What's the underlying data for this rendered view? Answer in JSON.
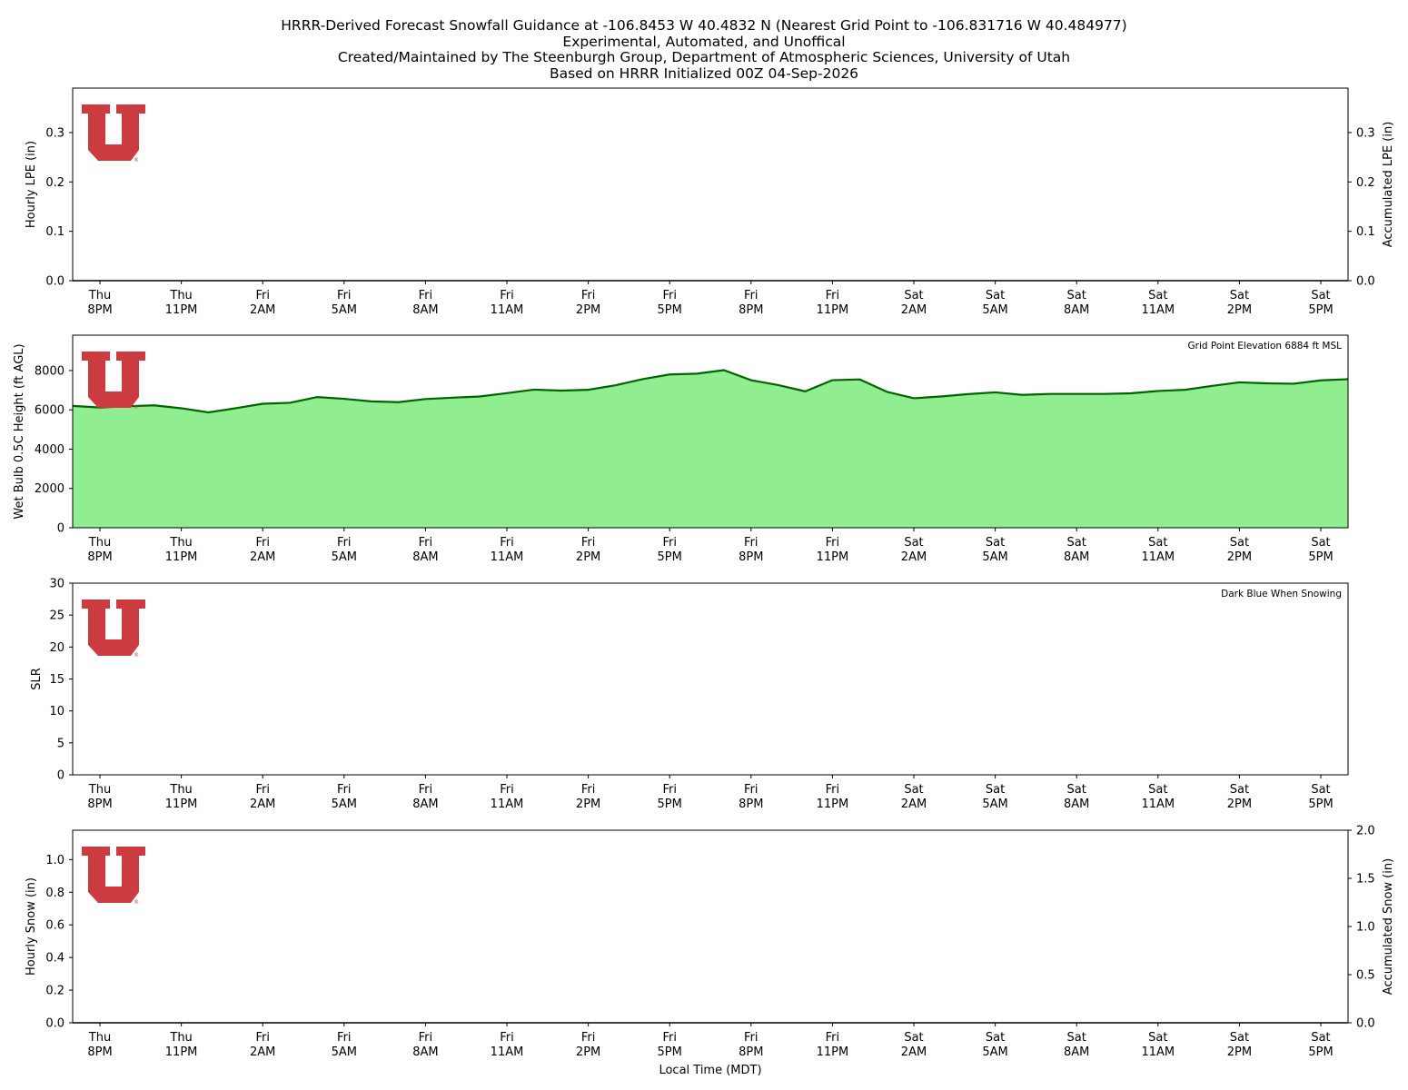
{
  "title_lines": [
    "HRRR-Derived Forecast Snowfall Guidance at -106.8453 W 40.4832 N (Nearest Grid Point to -106.831716 W 40.484977)",
    "Experimental, Automated, and Unoffical",
    "Created/Maintained by The Steenburgh Group, Department of Atmospheric Sciences, University of Utah",
    "Based on HRRR Initialized 00Z 04-Sep-2026"
  ],
  "x_axis_label": "Local Time (MDT)",
  "logo_letter": "U",
  "colors": {
    "logo_red": "#cc3b3f",
    "wetbulb_fill": "#90ee90",
    "wetbulb_line": "#006400",
    "axis": "#000000"
  },
  "chart_data": [
    {
      "id": "lpe",
      "type": "bar",
      "ylabel": "Hourly LPE (in)",
      "ylim": [
        0,
        0.39
      ],
      "yticks": [
        0.0,
        0.1,
        0.2,
        0.3
      ],
      "ylabel_right": "Accumulated LPE (in)",
      "ylim_right": [
        0,
        0.39
      ],
      "yticks_right": [
        0.0,
        0.1,
        0.2,
        0.3
      ],
      "note": "",
      "values": [
        0,
        0,
        0,
        0,
        0,
        0,
        0,
        0,
        0,
        0,
        0,
        0,
        0,
        0,
        0,
        0,
        0,
        0,
        0,
        0,
        0,
        0,
        0,
        0,
        0,
        0,
        0,
        0,
        0,
        0,
        0,
        0,
        0,
        0,
        0,
        0,
        0,
        0,
        0,
        0,
        0,
        0,
        0,
        0,
        0,
        0,
        0,
        0
      ],
      "accumulated": [
        0,
        0,
        0,
        0,
        0,
        0,
        0,
        0,
        0,
        0,
        0,
        0,
        0,
        0,
        0,
        0,
        0,
        0,
        0,
        0,
        0,
        0,
        0,
        0,
        0,
        0,
        0,
        0,
        0,
        0,
        0,
        0,
        0,
        0,
        0,
        0,
        0,
        0,
        0,
        0,
        0,
        0,
        0,
        0,
        0,
        0,
        0,
        0
      ]
    },
    {
      "id": "wetbulb",
      "type": "area",
      "ylabel": "Wet Bulb 0.5C Height (ft AGL)",
      "ylim": [
        0,
        9800
      ],
      "yticks": [
        0,
        2000,
        4000,
        6000,
        8000
      ],
      "note": "Grid Point Elevation 6884 ft MSL",
      "values": [
        6200,
        6120,
        6180,
        6230,
        6080,
        5870,
        6080,
        6310,
        6360,
        6650,
        6560,
        6430,
        6390,
        6550,
        6620,
        6680,
        6850,
        7030,
        6980,
        7020,
        7250,
        7560,
        7800,
        7840,
        8020,
        7510,
        7260,
        6940,
        7510,
        7550,
        6920,
        6590,
        6680,
        6800,
        6890,
        6760,
        6810,
        6810,
        6810,
        6840,
        6960,
        7020,
        7220,
        7400,
        7350,
        7330,
        7500,
        7560
      ]
    },
    {
      "id": "slr",
      "type": "bar",
      "ylabel": "SLR",
      "ylim": [
        0,
        30
      ],
      "yticks": [
        0,
        5,
        10,
        15,
        20,
        25,
        30
      ],
      "note": "Dark Blue When Snowing",
      "values": []
    },
    {
      "id": "snow",
      "type": "bar",
      "ylabel": "Hourly Snow (in)",
      "ylim": [
        0,
        1.18
      ],
      "yticks": [
        0.0,
        0.2,
        0.4,
        0.6,
        0.8,
        1.0
      ],
      "ylabel_right": "Accumulated Snow (in)",
      "ylim_right": [
        0,
        2.0
      ],
      "yticks_right": [
        0.0,
        0.5,
        1.0,
        1.5,
        2.0
      ],
      "note": "",
      "values": [
        0,
        0,
        0,
        0,
        0,
        0,
        0,
        0,
        0,
        0,
        0,
        0,
        0,
        0,
        0,
        0,
        0,
        0,
        0,
        0,
        0,
        0,
        0,
        0,
        0,
        0,
        0,
        0,
        0,
        0,
        0,
        0,
        0,
        0,
        0,
        0,
        0,
        0,
        0,
        0,
        0,
        0,
        0,
        0,
        0,
        0,
        0,
        0
      ],
      "accumulated": [
        0,
        0,
        0,
        0,
        0,
        0,
        0,
        0,
        0,
        0,
        0,
        0,
        0,
        0,
        0,
        0,
        0,
        0,
        0,
        0,
        0,
        0,
        0,
        0,
        0,
        0,
        0,
        0,
        0,
        0,
        0,
        0,
        0,
        0,
        0,
        0,
        0,
        0,
        0,
        0,
        0,
        0,
        0,
        0,
        0,
        0,
        0,
        0
      ]
    }
  ],
  "x_ticks": [
    {
      "day": "Thu",
      "time": "8PM"
    },
    {
      "day": "Thu",
      "time": "11PM"
    },
    {
      "day": "Fri",
      "time": "2AM"
    },
    {
      "day": "Fri",
      "time": "5AM"
    },
    {
      "day": "Fri",
      "time": "8AM"
    },
    {
      "day": "Fri",
      "time": "11AM"
    },
    {
      "day": "Fri",
      "time": "2PM"
    },
    {
      "day": "Fri",
      "time": "5PM"
    },
    {
      "day": "Fri",
      "time": "8PM"
    },
    {
      "day": "Fri",
      "time": "11PM"
    },
    {
      "day": "Sat",
      "time": "2AM"
    },
    {
      "day": "Sat",
      "time": "5AM"
    },
    {
      "day": "Sat",
      "time": "8AM"
    },
    {
      "day": "Sat",
      "time": "11AM"
    },
    {
      "day": "Sat",
      "time": "2PM"
    },
    {
      "day": "Sat",
      "time": "5PM"
    }
  ]
}
